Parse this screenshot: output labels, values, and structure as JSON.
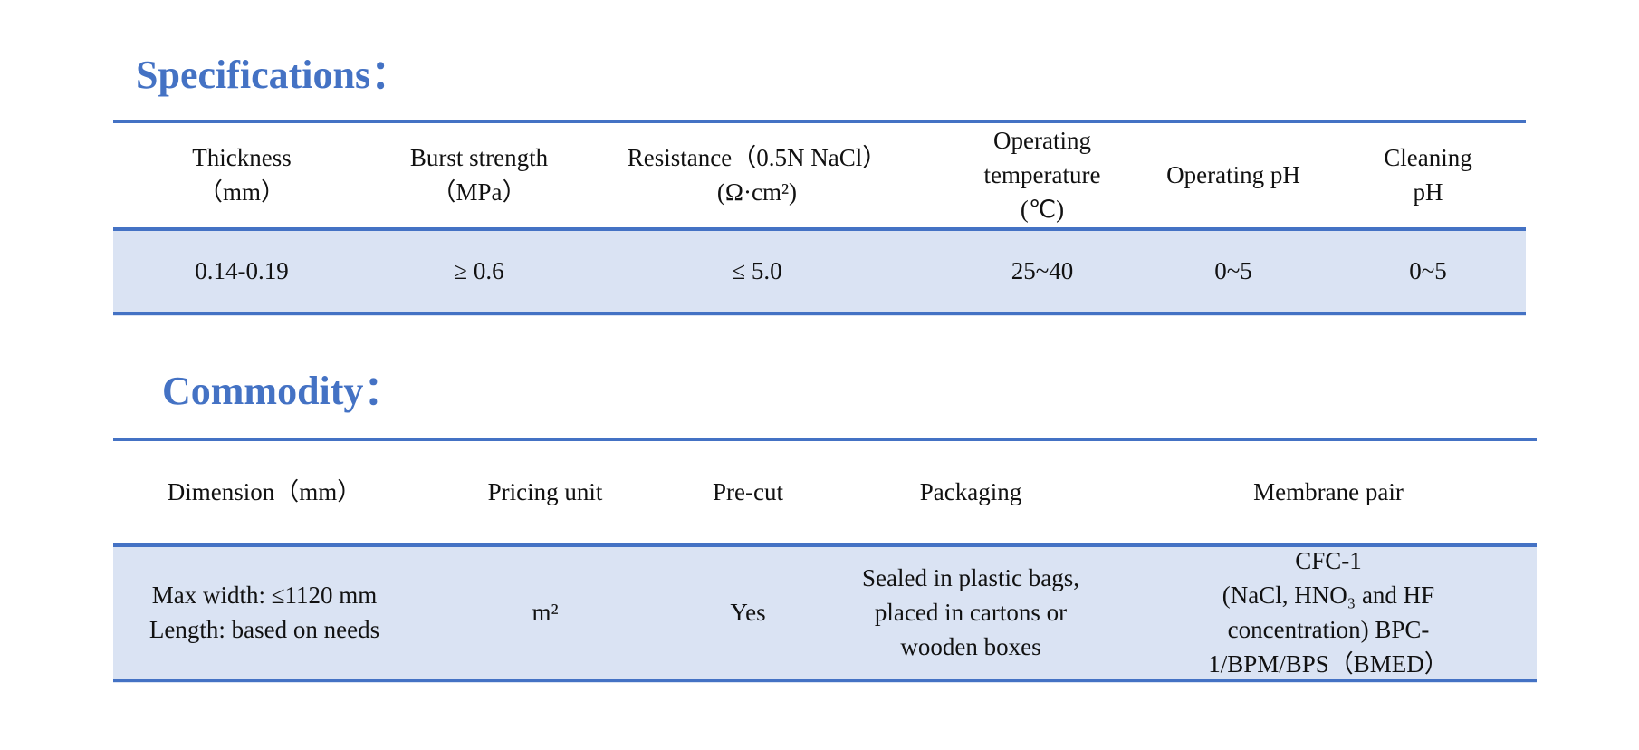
{
  "specifications": {
    "title": "Specifications：",
    "header": [
      [
        "Thickness",
        "（mm）"
      ],
      [
        "Burst strength",
        "（MPa）"
      ],
      [
        "Resistance（0.5N NaCl）",
        "(Ω·cm²)"
      ],
      [
        "Operating",
        "temperature",
        "(℃)"
      ],
      [
        "Operating pH"
      ],
      [
        "Cleaning",
        "pH"
      ]
    ],
    "row": [
      [
        "0.14-0.19"
      ],
      [
        "≥ 0.6"
      ],
      [
        "≤ 5.0"
      ],
      [
        "25~40"
      ],
      [
        "0~5"
      ],
      [
        "0~5"
      ]
    ]
  },
  "commodity": {
    "title": "Commodity：",
    "header": [
      [
        "Dimension（mm）"
      ],
      [
        "Pricing unit"
      ],
      [
        "Pre-cut"
      ],
      [
        "Packaging"
      ],
      [
        "Membrane pair"
      ]
    ],
    "row": [
      [
        "Max width: ≤1120 mm",
        "Length: based on needs"
      ],
      [
        "m²"
      ],
      [
        "Yes"
      ],
      [
        "Sealed in plastic bags,",
        "placed in cartons or",
        "wooden boxes"
      ],
      [
        "CFC-1",
        "(NaCl, HNO₃ and HF",
        "concentration)  BPC-",
        "1/BPM/BPS（BMED）"
      ]
    ]
  }
}
